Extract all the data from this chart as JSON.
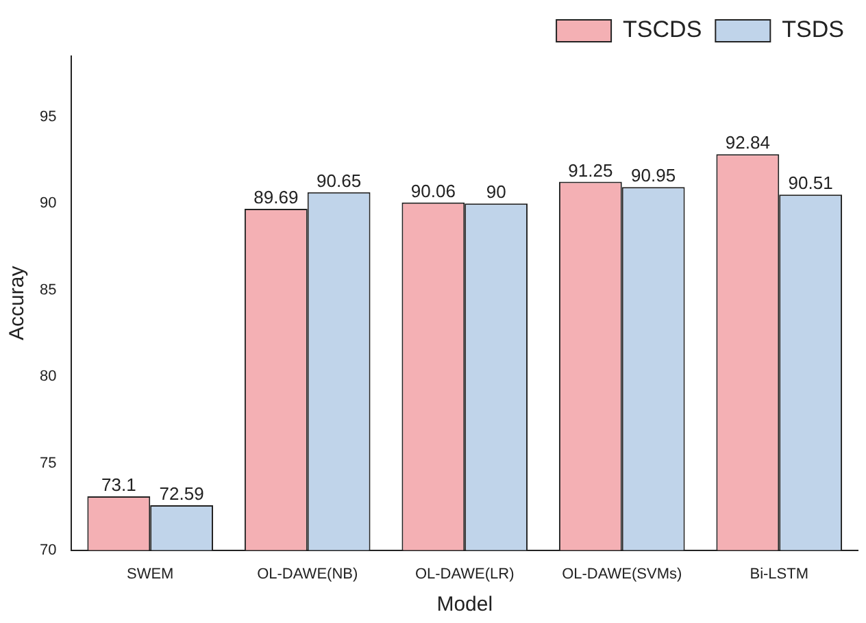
{
  "chart_data": {
    "type": "bar",
    "xlabel": "Model",
    "ylabel": "Accuray",
    "categories": [
      "SWEM",
      "OL-DAWE(NB)",
      "OL-DAWE(LR)",
      "OL-DAWE(SVMs)",
      "Bi-LSTM"
    ],
    "series": [
      {
        "name": "TSCDS",
        "color": "#f4b0b4",
        "values": [
          73.1,
          89.69,
          90.06,
          91.25,
          92.84
        ]
      },
      {
        "name": "TSDS",
        "color": "#c0d4ea",
        "values": [
          72.59,
          90.65,
          90,
          90.95,
          90.51
        ]
      }
    ],
    "ylim": [
      70,
      98.5
    ],
    "yticks": [
      70,
      75,
      80,
      85,
      90,
      95
    ],
    "grid": false,
    "legend": "top right",
    "data_labels": true
  }
}
